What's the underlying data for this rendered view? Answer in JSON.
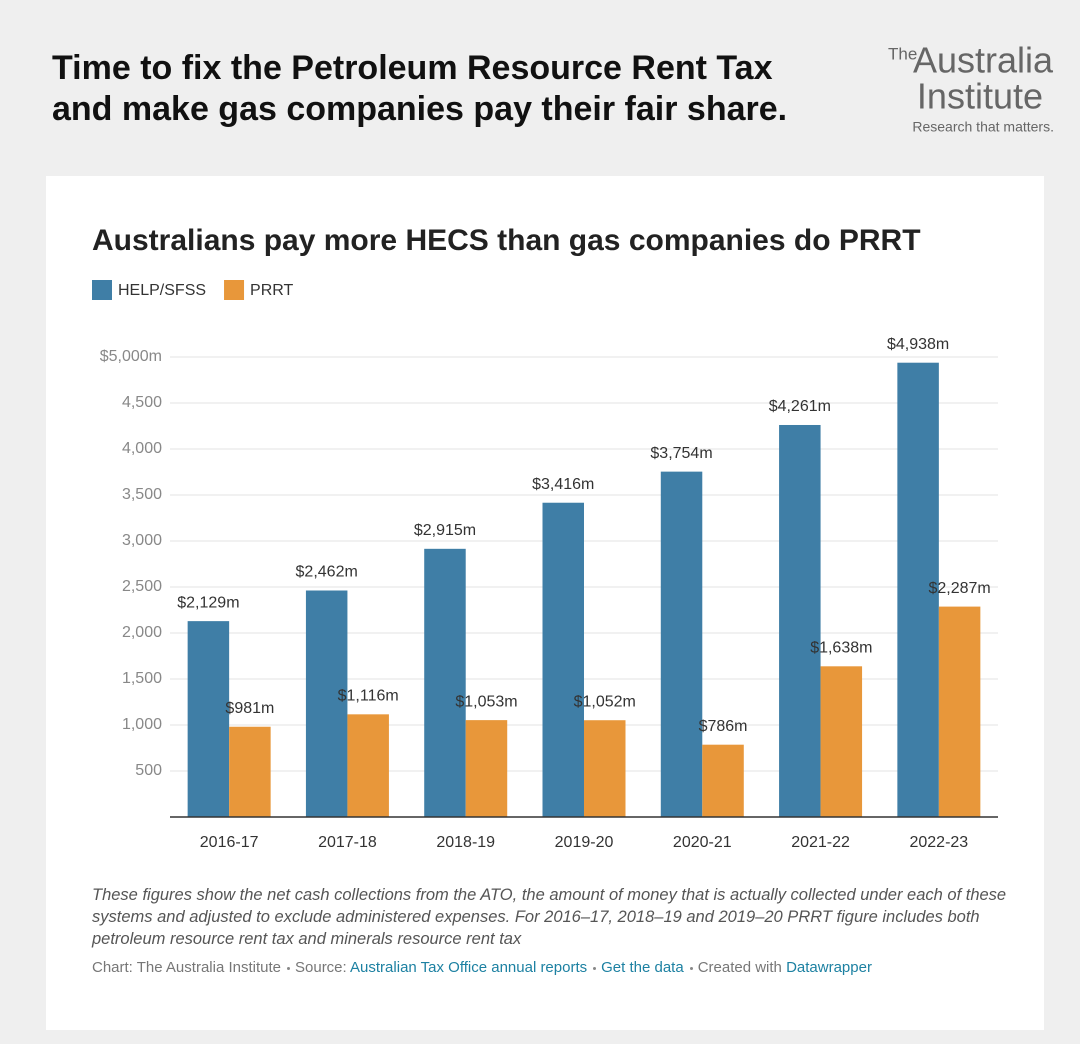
{
  "header": {
    "title_lines": [
      "Time to fix the Petroleum Resource Rent Tax",
      "and make gas companies pay their fair share."
    ]
  },
  "logo": {
    "the": "The",
    "line1": "Australia",
    "line2": "Institute",
    "tagline": "Research that matters."
  },
  "chart_data": {
    "type": "bar",
    "title": "Australians pay more HECS than gas companies do PRRT",
    "categories": [
      "2016-17",
      "2017-18",
      "2018-19",
      "2019-20",
      "2020-21",
      "2021-22",
      "2022-23"
    ],
    "series": [
      {
        "name": "HELP/SFSS",
        "color": "#3f7ea6",
        "values": [
          2129,
          2462,
          2915,
          3416,
          3754,
          4261,
          4938
        ],
        "value_labels": [
          "$2,129m",
          "$2,462m",
          "$2,915m",
          "$3,416m",
          "$3,754m",
          "$4,261m",
          "$4,938m"
        ]
      },
      {
        "name": "PRRT",
        "color": "#e8973a",
        "values": [
          981,
          1116,
          1053,
          1052,
          786,
          1638,
          2287
        ],
        "value_labels": [
          "$981m",
          "$1,116m",
          "$1,053m",
          "$1,052m",
          "$786m",
          "$1,638m",
          "$2,287m"
        ]
      }
    ],
    "ylim": [
      0,
      5000
    ],
    "yticks": [
      500,
      {
        "value": 1000,
        "label": "1,000"
      },
      {
        "value": 1500,
        "label": "1,500"
      },
      {
        "value": 2000,
        "label": "2,000"
      },
      {
        "value": 2500,
        "label": "2,500"
      },
      {
        "value": 3000,
        "label": "3,000"
      },
      {
        "value": 3500,
        "label": "3,500"
      },
      {
        "value": 4000,
        "label": "4,000"
      },
      {
        "value": 4500,
        "label": "4,500"
      },
      {
        "value": 5000,
        "label": "$5,000m"
      }
    ],
    "grid": true,
    "note": "These figures show the net cash collections from the ATO, the amount of money that is actually collected under each of these systems and adjusted to exclude administered expenses. For 2016–17, 2018–19 and 2019–20 PRRT figure includes both petroleum resource rent tax and minerals resource rent tax",
    "credit": "Chart: The Australia Institute",
    "source_label": "Source:",
    "source": "Australian Tax Office annual reports",
    "get_data": "Get the data",
    "created_label": "Created with",
    "created_tool": "Datawrapper"
  }
}
